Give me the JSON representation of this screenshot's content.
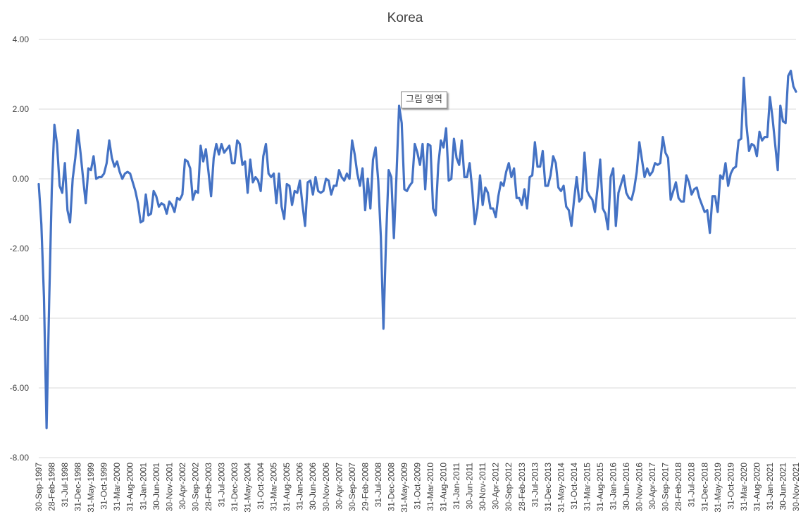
{
  "chart_data": {
    "type": "line",
    "title": "Korea",
    "xlabel": "",
    "ylabel": "",
    "ylim": [
      -8,
      4
    ],
    "y_ticks": [
      "4.00",
      "2.00",
      "0.00",
      "-2.00",
      "-4.00",
      "-6.00",
      "-8.00"
    ],
    "grid": true,
    "legend": "none",
    "x_start": "1997-09",
    "x_tick_labels": [
      "30-Sep-1997",
      "28-Feb-1998",
      "31-Jul-1998",
      "31-Dec-1998",
      "31-May-1999",
      "31-Oct-1999",
      "31-Mar-2000",
      "31-Aug-2000",
      "31-Jan-2001",
      "30-Jun-2001",
      "30-Nov-2001",
      "30-Apr-2002",
      "30-Sep-2002",
      "28-Feb-2003",
      "31-Jul-2003",
      "31-Dec-2003",
      "31-May-2004",
      "31-Oct-2004",
      "31-Mar-2005",
      "31-Aug-2005",
      "31-Jan-2006",
      "30-Jun-2006",
      "30-Nov-2006",
      "30-Apr-2007",
      "30-Sep-2007",
      "29-Feb-2008",
      "31-Jul-2008",
      "31-Dec-2008",
      "31-May-2009",
      "31-Oct-2009",
      "31-Mar-2010",
      "31-Aug-2010",
      "31-Jan-2011",
      "30-Jun-2011",
      "30-Nov-2011",
      "30-Apr-2012",
      "30-Sep-2012",
      "28-Feb-2013",
      "31-Jul-2013",
      "31-Dec-2013",
      "31-May-2014",
      "31-Oct-2014",
      "31-Mar-2015",
      "31-Aug-2015",
      "31-Jan-2016",
      "30-Jun-2016",
      "30-Nov-2016",
      "30-Apr-2017",
      "30-Sep-2017",
      "28-Feb-2018",
      "31-Jul-2018",
      "31-Dec-2018",
      "31-May-2019",
      "31-Oct-2019",
      "31-Mar-2020",
      "31-Aug-2020",
      "31-Jan-2021",
      "30-Jun-2021",
      "30-Nov-2021"
    ],
    "series": [
      {
        "color": "#4472c4",
        "values": [
          -0.15,
          -1.3,
          -3.4,
          -7.15,
          -3.5,
          -0.3,
          1.55,
          1.0,
          -0.2,
          -0.4,
          0.45,
          -0.9,
          -1.25,
          0.0,
          0.6,
          1.4,
          0.75,
          0.0,
          -0.7,
          0.3,
          0.25,
          0.65,
          0.0,
          0.05,
          0.05,
          0.15,
          0.45,
          1.1,
          0.6,
          0.35,
          0.5,
          0.2,
          0.0,
          0.15,
          0.2,
          0.15,
          -0.1,
          -0.35,
          -0.7,
          -1.25,
          -1.2,
          -0.45,
          -1.05,
          -1.0,
          -0.35,
          -0.5,
          -0.8,
          -0.7,
          -0.75,
          -1.0,
          -0.65,
          -0.75,
          -0.95,
          -0.55,
          -0.6,
          -0.45,
          0.55,
          0.5,
          0.3,
          -0.6,
          -0.35,
          -0.4,
          0.95,
          0.5,
          0.85,
          0.2,
          -0.5,
          0.6,
          1.0,
          0.7,
          1.0,
          0.75,
          0.85,
          0.95,
          0.45,
          0.45,
          1.1,
          1.0,
          0.4,
          0.5,
          -0.4,
          0.55,
          -0.1,
          0.05,
          -0.05,
          -0.35,
          0.65,
          1.0,
          0.15,
          0.05,
          0.15,
          -0.7,
          0.15,
          -0.8,
          -1.15,
          -0.15,
          -0.2,
          -0.75,
          -0.35,
          -0.4,
          -0.05,
          -0.75,
          -1.35,
          -0.1,
          -0.05,
          -0.45,
          0.05,
          -0.35,
          -0.4,
          -0.35,
          0.0,
          -0.05,
          -0.45,
          -0.2,
          -0.2,
          0.25,
          0.05,
          -0.05,
          0.15,
          0.0,
          1.1,
          0.7,
          0.15,
          -0.2,
          0.3,
          -0.9,
          0.0,
          -0.85,
          0.55,
          0.9,
          -0.05,
          -1.65,
          -4.3,
          -1.75,
          0.25,
          0.05,
          -1.7,
          0.1,
          2.1,
          1.6,
          -0.3,
          -0.35,
          -0.2,
          -0.1,
          1.0,
          0.75,
          0.4,
          1.0,
          -0.3,
          1.0,
          0.95,
          -0.85,
          -1.05,
          0.4,
          1.1,
          0.9,
          1.45,
          -0.05,
          0.0,
          1.15,
          0.6,
          0.4,
          1.1,
          0.05,
          0.05,
          0.45,
          -0.3,
          -1.3,
          -0.85,
          0.1,
          -0.75,
          -0.25,
          -0.4,
          -0.85,
          -0.85,
          -1.1,
          -0.5,
          -0.1,
          -0.2,
          0.2,
          0.45,
          0.05,
          0.3,
          -0.55,
          -0.55,
          -0.75,
          -0.3,
          -0.85,
          0.05,
          0.1,
          1.05,
          0.35,
          0.35,
          0.8,
          -0.2,
          -0.2,
          0.1,
          0.65,
          0.45,
          -0.25,
          -0.35,
          -0.2,
          -0.8,
          -0.9,
          -1.35,
          -0.6,
          0.05,
          -0.65,
          -0.55,
          0.75,
          -0.35,
          -0.5,
          -0.6,
          -0.95,
          -0.25,
          0.55,
          -0.85,
          -1.0,
          -1.45,
          0.05,
          0.3,
          -1.35,
          -0.4,
          -0.15,
          0.1,
          -0.4,
          -0.55,
          -0.6,
          -0.3,
          0.2,
          1.05,
          0.55,
          0.05,
          0.3,
          0.1,
          0.2,
          0.45,
          0.4,
          0.45,
          1.2,
          0.75,
          0.6,
          -0.6,
          -0.35,
          -0.1,
          -0.55,
          -0.65,
          -0.65,
          0.1,
          -0.1,
          -0.45,
          -0.3,
          -0.25,
          -0.55,
          -0.75,
          -0.95,
          -0.9,
          -1.55,
          -0.5,
          -0.5,
          -0.95,
          0.1,
          0.0,
          0.45,
          -0.2,
          0.15,
          0.3,
          0.35,
          1.1,
          1.15,
          2.9,
          1.55,
          0.8,
          1.0,
          0.95,
          0.65,
          1.35,
          1.1,
          1.2,
          1.2,
          2.35,
          1.75,
          1.0,
          0.25,
          2.1,
          1.65,
          1.6,
          2.95,
          3.1,
          2.65,
          2.5
        ]
      }
    ]
  },
  "tooltip": {
    "text": "그림 영역"
  }
}
